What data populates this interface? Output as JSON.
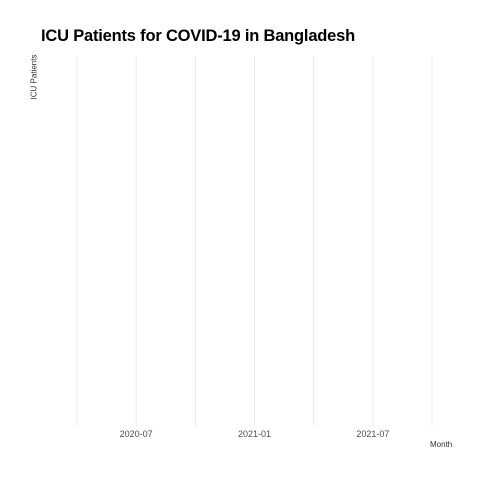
{
  "chart_data": {
    "type": "line",
    "title": "ICU Patients for COVID-19 in Bangladesh",
    "xlabel": "Month",
    "ylabel": "ICU Patients",
    "grid": true,
    "x_axis": {
      "type": "date",
      "xlim": [
        "2020-04",
        "2021-10"
      ],
      "major_ticks": [
        "2020-07",
        "2021-01",
        "2021-07"
      ],
      "minor_gridlines": [
        "2020-04",
        "2020-10",
        "2021-04",
        "2021-10"
      ]
    },
    "series": []
  },
  "colors": {
    "grid": "#ebebeb",
    "text": "#4d4d4d"
  }
}
